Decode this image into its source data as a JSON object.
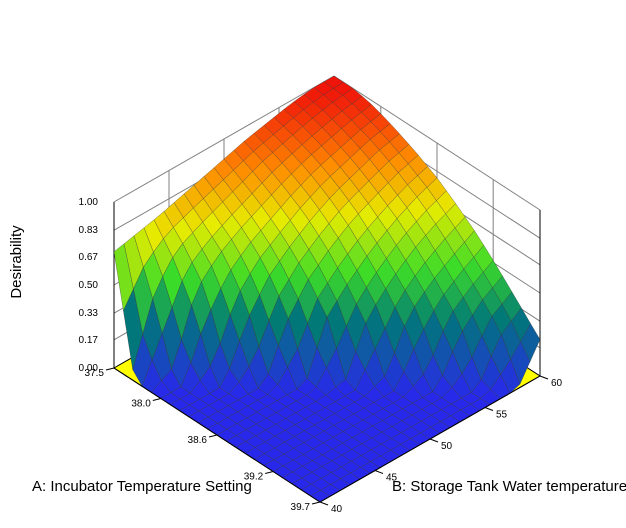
{
  "chart_data": {
    "type": "surface3d",
    "zlabel": "Desirability",
    "xlabel": "A: Incubator Temperature Setting",
    "ylabel": "B: Storage Tank Water temperature",
    "z_ticks": [
      "0.00",
      "0.17",
      "0.33",
      "0.50",
      "0.67",
      "0.83",
      "1.00"
    ],
    "a_ticks": [
      "37.5",
      "38.0",
      "38.6",
      "39.2",
      "39.7"
    ],
    "b_ticks": [
      "40",
      "45",
      "50",
      "55",
      "60"
    ],
    "a_range": [
      37.5,
      39.7
    ],
    "b_range": [
      40,
      60
    ],
    "z_range": [
      0,
      1
    ],
    "grid": true,
    "colormap": "blue-green-yellow-red",
    "floor_color": "#ffff00",
    "surface_rows_b": [
      40,
      42,
      44,
      46,
      48,
      50,
      52,
      54,
      56,
      58,
      60
    ],
    "surface_cols_a": [
      37.5,
      37.72,
      37.94,
      38.16,
      38.38,
      38.6,
      38.82,
      39.04,
      39.26,
      39.48,
      39.7
    ],
    "desirability": [
      [
        0.7,
        0.0,
        0.0,
        0.0,
        0.0,
        0.0,
        0.0,
        0.0,
        0.0,
        0.0,
        0.0
      ],
      [
        0.73,
        0.43,
        0.0,
        0.0,
        0.0,
        0.0,
        0.0,
        0.0,
        0.0,
        0.0,
        0.0
      ],
      [
        0.76,
        0.62,
        0.42,
        0.0,
        0.0,
        0.0,
        0.0,
        0.0,
        0.0,
        0.0,
        0.0
      ],
      [
        0.8,
        0.69,
        0.57,
        0.36,
        0.0,
        0.0,
        0.0,
        0.0,
        0.0,
        0.0,
        0.0
      ],
      [
        0.84,
        0.75,
        0.66,
        0.53,
        0.33,
        0.0,
        0.0,
        0.0,
        0.0,
        0.0,
        0.0
      ],
      [
        0.88,
        0.81,
        0.73,
        0.63,
        0.5,
        0.33,
        0.0,
        0.0,
        0.0,
        0.0,
        0.0
      ],
      [
        0.92,
        0.87,
        0.8,
        0.72,
        0.61,
        0.47,
        0.31,
        0.0,
        0.0,
        0.0,
        0.0
      ],
      [
        0.95,
        0.91,
        0.86,
        0.79,
        0.7,
        0.58,
        0.45,
        0.31,
        0.0,
        0.0,
        0.0
      ],
      [
        0.98,
        0.95,
        0.9,
        0.84,
        0.76,
        0.67,
        0.56,
        0.43,
        0.29,
        0.0,
        0.0
      ],
      [
        1.0,
        0.98,
        0.94,
        0.89,
        0.82,
        0.74,
        0.64,
        0.52,
        0.4,
        0.26,
        0.0
      ],
      [
        1.0,
        1.0,
        0.97,
        0.92,
        0.86,
        0.79,
        0.7,
        0.6,
        0.48,
        0.35,
        0.22
      ]
    ]
  }
}
